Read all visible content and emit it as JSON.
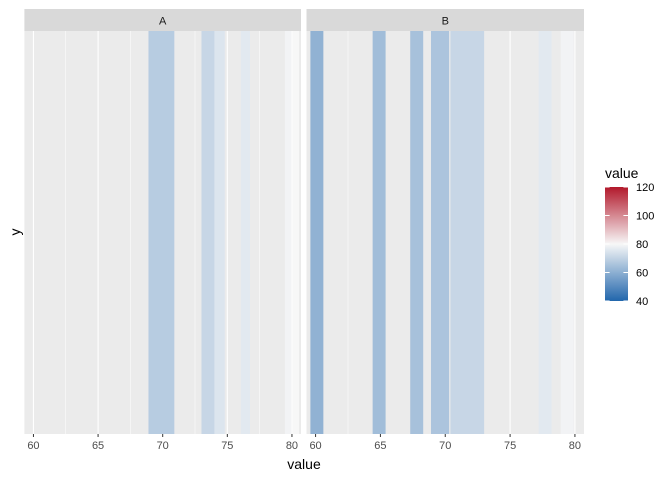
{
  "chart_data": {
    "type": "heatmap",
    "xlabel": "value",
    "ylabel": "y",
    "xlim": [
      59.3,
      80.7
    ],
    "xticks": [
      60,
      65,
      70,
      75,
      80
    ],
    "tick_labels": [
      "60",
      "65",
      "70",
      "75",
      "80"
    ],
    "fill_scale": {
      "title": "value",
      "limits": [
        40,
        120
      ],
      "ticks": [
        40,
        60,
        80,
        100,
        120
      ],
      "tick_labels": [
        "40",
        "60",
        "80",
        "100",
        "120"
      ],
      "low_color": "#2166ac",
      "mid_color": "#f7f7f7",
      "high_color": "#b2182b",
      "midpoint": 80
    },
    "colors": {
      "panel_background": "#ebebeb",
      "grid": "#ffffff",
      "strip_background": "#d9d9d9"
    },
    "facets": [
      {
        "label": "A",
        "tiles": [
          {
            "x": 69.9,
            "width": 2.0,
            "fill": 68
          },
          {
            "x": 73.6,
            "width": 1.2,
            "fill": 71
          },
          {
            "x": 74.4,
            "width": 0.8,
            "fill": 75
          },
          {
            "x": 76.4,
            "width": 0.7,
            "fill": 76
          },
          {
            "x": 79.7,
            "width": 0.5,
            "fill": 79
          },
          {
            "x": 80.3,
            "width": 0.5,
            "fill": 80
          }
        ]
      },
      {
        "label": "B",
        "tiles": [
          {
            "x": 60.1,
            "width": 1.0,
            "fill": 61
          },
          {
            "x": 64.9,
            "width": 1.0,
            "fill": 64
          },
          {
            "x": 67.8,
            "width": 1.0,
            "fill": 65
          },
          {
            "x": 69.6,
            "width": 1.4,
            "fill": 66
          },
          {
            "x": 71.7,
            "width": 2.6,
            "fill": 71
          },
          {
            "x": 77.7,
            "width": 1.0,
            "fill": 76
          },
          {
            "x": 79.4,
            "width": 1.0,
            "fill": 79
          }
        ]
      }
    ]
  }
}
